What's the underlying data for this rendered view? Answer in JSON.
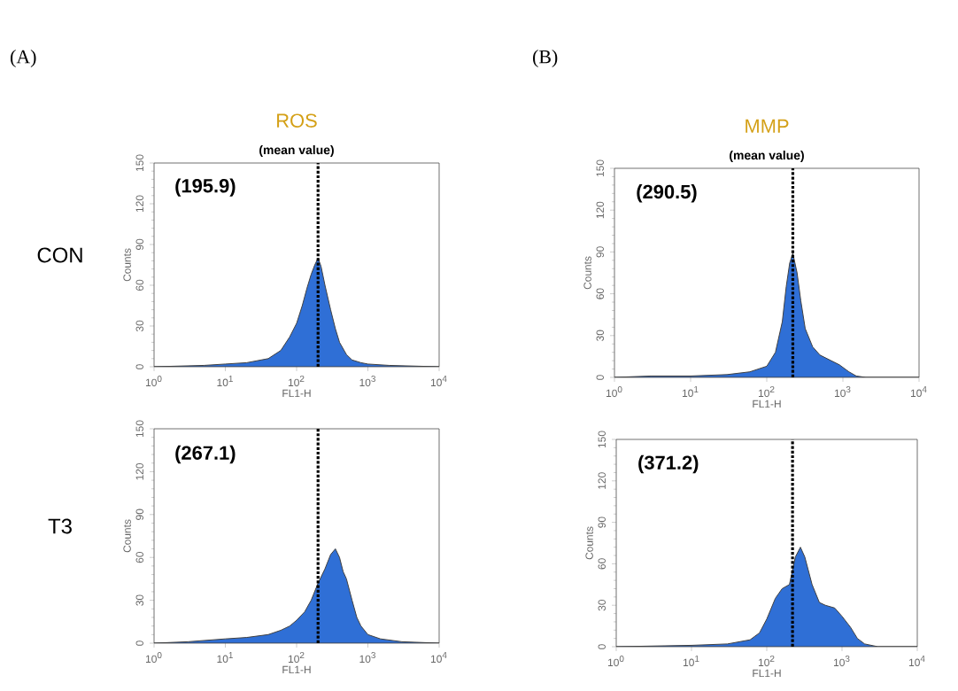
{
  "chart_data": [
    {
      "type": "area",
      "title": "ROS",
      "subtitle": "(mean value)",
      "xlabel": "FL1-H",
      "ylabel": "Counts",
      "annotations": [
        "(A)",
        "CON",
        "(195.9)"
      ],
      "x": [
        1,
        5,
        10,
        20,
        40,
        60,
        80,
        100,
        120,
        140,
        160,
        180,
        200,
        220,
        250,
        300,
        350,
        400,
        500,
        600,
        800,
        1000,
        2000,
        10000
      ],
      "values": [
        0,
        1,
        2,
        3,
        6,
        12,
        22,
        32,
        45,
        58,
        68,
        75,
        80,
        74,
        60,
        42,
        28,
        18,
        9,
        5,
        3,
        2,
        1,
        0
      ],
      "color": "#2f6fd6",
      "xlim": [
        1,
        10000
      ],
      "xticks": [
        {
          "value": 1,
          "label": "10$^{0}$"
        },
        {
          "value": 10,
          "label": "10$^{1}$"
        },
        {
          "value": 100,
          "label": "10$^{2}$"
        },
        {
          "value": 1000,
          "label": "10$^{3}$"
        },
        {
          "value": 10000,
          "label": "10$^{4}$"
        }
      ],
      "ylim": [
        0,
        150
      ],
      "yticks": [
        0,
        30,
        60,
        90,
        120,
        150
      ],
      "log": "x",
      "marker": "none",
      "ref_lines": [
        {
          "axis": "x",
          "value": 200,
          "color": "#000000",
          "line_style": "dotted"
        }
      ]
    },
    {
      "type": "area",
      "xlabel": "FL1-H",
      "ylabel": "Counts",
      "annotations": [
        "T3",
        "(267.1)"
      ],
      "x": [
        1,
        3,
        10,
        20,
        40,
        60,
        80,
        100,
        130,
        160,
        200,
        250,
        300,
        350,
        400,
        450,
        500,
        600,
        700,
        800,
        1000,
        1500,
        3000,
        10000
      ],
      "values": [
        0,
        1,
        3,
        4,
        6,
        9,
        12,
        16,
        22,
        30,
        42,
        52,
        62,
        66,
        60,
        50,
        45,
        30,
        18,
        12,
        6,
        3,
        1,
        0
      ],
      "color": "#2f6fd6",
      "xlim": [
        1,
        10000
      ],
      "xticks": [
        {
          "value": 1,
          "label": "10$^{0}$"
        },
        {
          "value": 10,
          "label": "10$^{1}$"
        },
        {
          "value": 100,
          "label": "10$^{2}$"
        },
        {
          "value": 1000,
          "label": "10$^{3}$"
        },
        {
          "value": 10000,
          "label": "10$^{4}$"
        }
      ],
      "ylim": [
        0,
        150
      ],
      "yticks": [
        0,
        30,
        60,
        90,
        120,
        150
      ],
      "log": "x",
      "marker": "none",
      "ref_lines": [
        {
          "axis": "x",
          "value": 200,
          "color": "#000000",
          "line_style": "dotted"
        }
      ]
    },
    {
      "type": "area",
      "title": "MMP",
      "subtitle": "(mean value)",
      "xlabel": "FL1-H",
      "ylabel": "Counts",
      "annotations": [
        "(B)",
        "(290.5)"
      ],
      "x": [
        1,
        3,
        10,
        30,
        60,
        100,
        130,
        160,
        180,
        200,
        220,
        250,
        280,
        320,
        400,
        500,
        700,
        900,
        1200,
        1500,
        2000,
        10000
      ],
      "values": [
        0,
        1,
        1,
        2,
        4,
        8,
        18,
        40,
        65,
        82,
        89,
        75,
        55,
        35,
        22,
        16,
        12,
        9,
        4,
        1,
        0,
        0
      ],
      "color": "#2f6fd6",
      "xlim": [
        1,
        10000
      ],
      "xticks": [
        {
          "value": 1,
          "label": "10$^{0}$"
        },
        {
          "value": 10,
          "label": "10$^{1}$"
        },
        {
          "value": 100,
          "label": "10$^{2}$"
        },
        {
          "value": 1000,
          "label": "10$^{3}$"
        },
        {
          "value": 10000,
          "label": "10$^{4}$"
        }
      ],
      "ylim": [
        0,
        150
      ],
      "yticks": [
        0,
        30,
        60,
        90,
        120,
        150
      ],
      "log": "x",
      "marker": "none",
      "ref_lines": [
        {
          "axis": "x",
          "value": 220,
          "color": "#000000",
          "line_style": "dotted"
        }
      ]
    },
    {
      "type": "area",
      "xlabel": "FL1-H",
      "ylabel": "Counts",
      "annotations": [
        "(371.2)"
      ],
      "x": [
        1,
        10,
        30,
        60,
        80,
        100,
        130,
        160,
        200,
        240,
        280,
        320,
        400,
        500,
        600,
        800,
        1000,
        1300,
        1600,
        2000,
        3000,
        10000
      ],
      "values": [
        0,
        1,
        2,
        5,
        10,
        20,
        35,
        42,
        45,
        65,
        72,
        65,
        45,
        32,
        30,
        28,
        22,
        14,
        6,
        2,
        0,
        0
      ],
      "color": "#2f6fd6",
      "xlim": [
        1,
        10000
      ],
      "xticks": [
        {
          "value": 1,
          "label": "10$^{0}$"
        },
        {
          "value": 10,
          "label": "10$^{1}$"
        },
        {
          "value": 100,
          "label": "10$^{2}$"
        },
        {
          "value": 1000,
          "label": "10$^{3}$"
        },
        {
          "value": 10000,
          "label": "10$^{4}$"
        }
      ],
      "ylim": [
        0,
        150
      ],
      "yticks": [
        0,
        30,
        60,
        90,
        120,
        150
      ],
      "log": "x",
      "marker": "none",
      "ref_lines": [
        {
          "axis": "x",
          "value": 220,
          "color": "#000000",
          "line_style": "dotted"
        }
      ]
    }
  ]
}
